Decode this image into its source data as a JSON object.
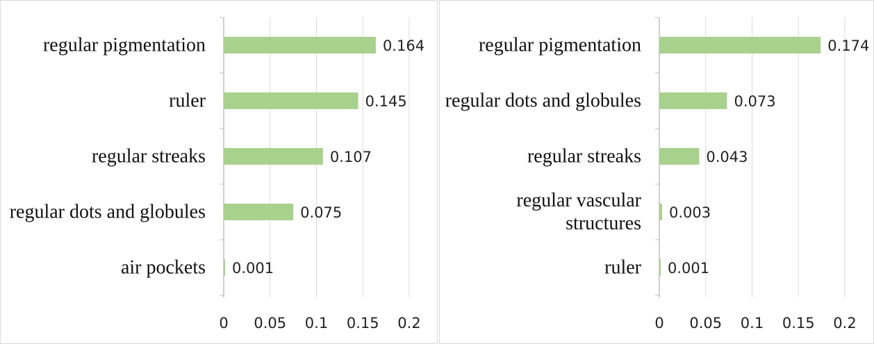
{
  "chart_data": [
    {
      "type": "bar",
      "orientation": "horizontal",
      "categories": [
        "regular pigmentation",
        "ruler",
        "regular streaks",
        "regular dots and globules",
        "air pockets"
      ],
      "values": [
        0.164,
        0.145,
        0.107,
        0.075,
        0.001
      ],
      "color": "#a9d18e",
      "xlim": [
        0,
        0.2
      ],
      "xticks": [
        0,
        0.05,
        0.1,
        0.15,
        0.2
      ],
      "grid": true
    },
    {
      "type": "bar",
      "orientation": "horizontal",
      "categories": [
        "regular pigmentation",
        "regular dots and globules",
        "regular streaks",
        "regular vascular structures",
        "ruler"
      ],
      "values": [
        0.174,
        0.073,
        0.043,
        0.003,
        0.001
      ],
      "color": "#a9d18e",
      "xlim": [
        0,
        0.2
      ],
      "xticks": [
        0,
        0.05,
        0.1,
        0.15,
        0.2
      ],
      "grid": true
    }
  ]
}
